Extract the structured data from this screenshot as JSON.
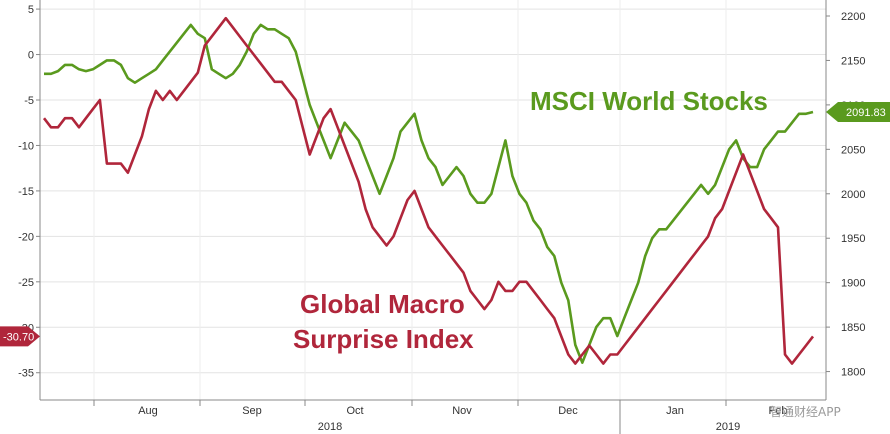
{
  "chart_data": {
    "type": "line",
    "title": "",
    "x_labels": [
      "Aug",
      "Sep",
      "Oct",
      "Nov",
      "Dec",
      "Jan",
      "Feb"
    ],
    "year_labels": [
      "2018",
      "2019"
    ],
    "left_axis": {
      "ticks": [
        5,
        0,
        -5,
        -10,
        -15,
        -20,
        -25,
        -30,
        -35
      ],
      "range": [
        -38,
        6
      ]
    },
    "right_axis": {
      "ticks": [
        2200,
        2150,
        2100,
        2050,
        2000,
        1950,
        1900,
        1850,
        1800
      ],
      "range": [
        1768,
        2218
      ]
    },
    "grid": true,
    "series": [
      {
        "name": "MSCI World Stocks",
        "axis": "right",
        "color": "#5a9a1e",
        "last_label": "2091.83",
        "values": [
          2135,
          2135,
          2138,
          2145,
          2145,
          2140,
          2138,
          2140,
          2145,
          2150,
          2150,
          2145,
          2130,
          2125,
          2130,
          2135,
          2140,
          2150,
          2160,
          2170,
          2180,
          2190,
          2180,
          2175,
          2140,
          2135,
          2130,
          2135,
          2145,
          2160,
          2180,
          2190,
          2185,
          2185,
          2180,
          2175,
          2160,
          2130,
          2100,
          2080,
          2060,
          2040,
          2060,
          2080,
          2070,
          2060,
          2040,
          2020,
          2000,
          2020,
          2040,
          2070,
          2080,
          2090,
          2060,
          2040,
          2030,
          2010,
          2020,
          2030,
          2020,
          2000,
          1990,
          1990,
          2000,
          2030,
          2060,
          2020,
          2000,
          1990,
          1970,
          1960,
          1940,
          1930,
          1900,
          1880,
          1830,
          1810,
          1830,
          1850,
          1860,
          1860,
          1840,
          1860,
          1880,
          1900,
          1930,
          1950,
          1960,
          1960,
          1970,
          1980,
          1990,
          2000,
          2010,
          2000,
          2010,
          2030,
          2050,
          2060,
          2040,
          2030,
          2030,
          2050,
          2060,
          2070,
          2070,
          2080,
          2090,
          2090,
          2092
        ]
      },
      {
        "name": "Global Macro Surprise Index",
        "axis": "left",
        "color": "#b0263b",
        "last_label": "-30.70",
        "values": [
          -7,
          -8,
          -8,
          -7,
          -7,
          -8,
          -7,
          -6,
          -5,
          -12,
          -12,
          -12,
          -13,
          -11,
          -9,
          -6,
          -4,
          -5,
          -4,
          -5,
          -4,
          -3,
          -2,
          1,
          2,
          3,
          4,
          3,
          2,
          1,
          0,
          -1,
          -2,
          -3,
          -3,
          -4,
          -5,
          -8,
          -11,
          -9,
          -7,
          -6,
          -8,
          -10,
          -12,
          -14,
          -17,
          -19,
          -20,
          -21,
          -20,
          -18,
          -16,
          -15,
          -17,
          -19,
          -20,
          -21,
          -22,
          -23,
          -24,
          -26,
          -27,
          -28,
          -27,
          -25,
          -26,
          -26,
          -25,
          -25,
          -26,
          -27,
          -28,
          -29,
          -31,
          -33,
          -34,
          -33,
          -32,
          -33,
          -34,
          -33,
          -33,
          -32,
          -31,
          -30,
          -29,
          -28,
          -27,
          -26,
          -25,
          -24,
          -23,
          -22,
          -21,
          -20,
          -18,
          -17,
          -15,
          -13,
          -11,
          -13,
          -15,
          -17,
          -18,
          -19,
          -33,
          -34,
          -33,
          -32,
          -31
        ]
      }
    ]
  },
  "labels": {
    "msci": "MSCI World Stocks",
    "gmsi_line1": "Global Macro",
    "gmsi_line2": "Surprise Index"
  },
  "watermark": "智通财经APP"
}
